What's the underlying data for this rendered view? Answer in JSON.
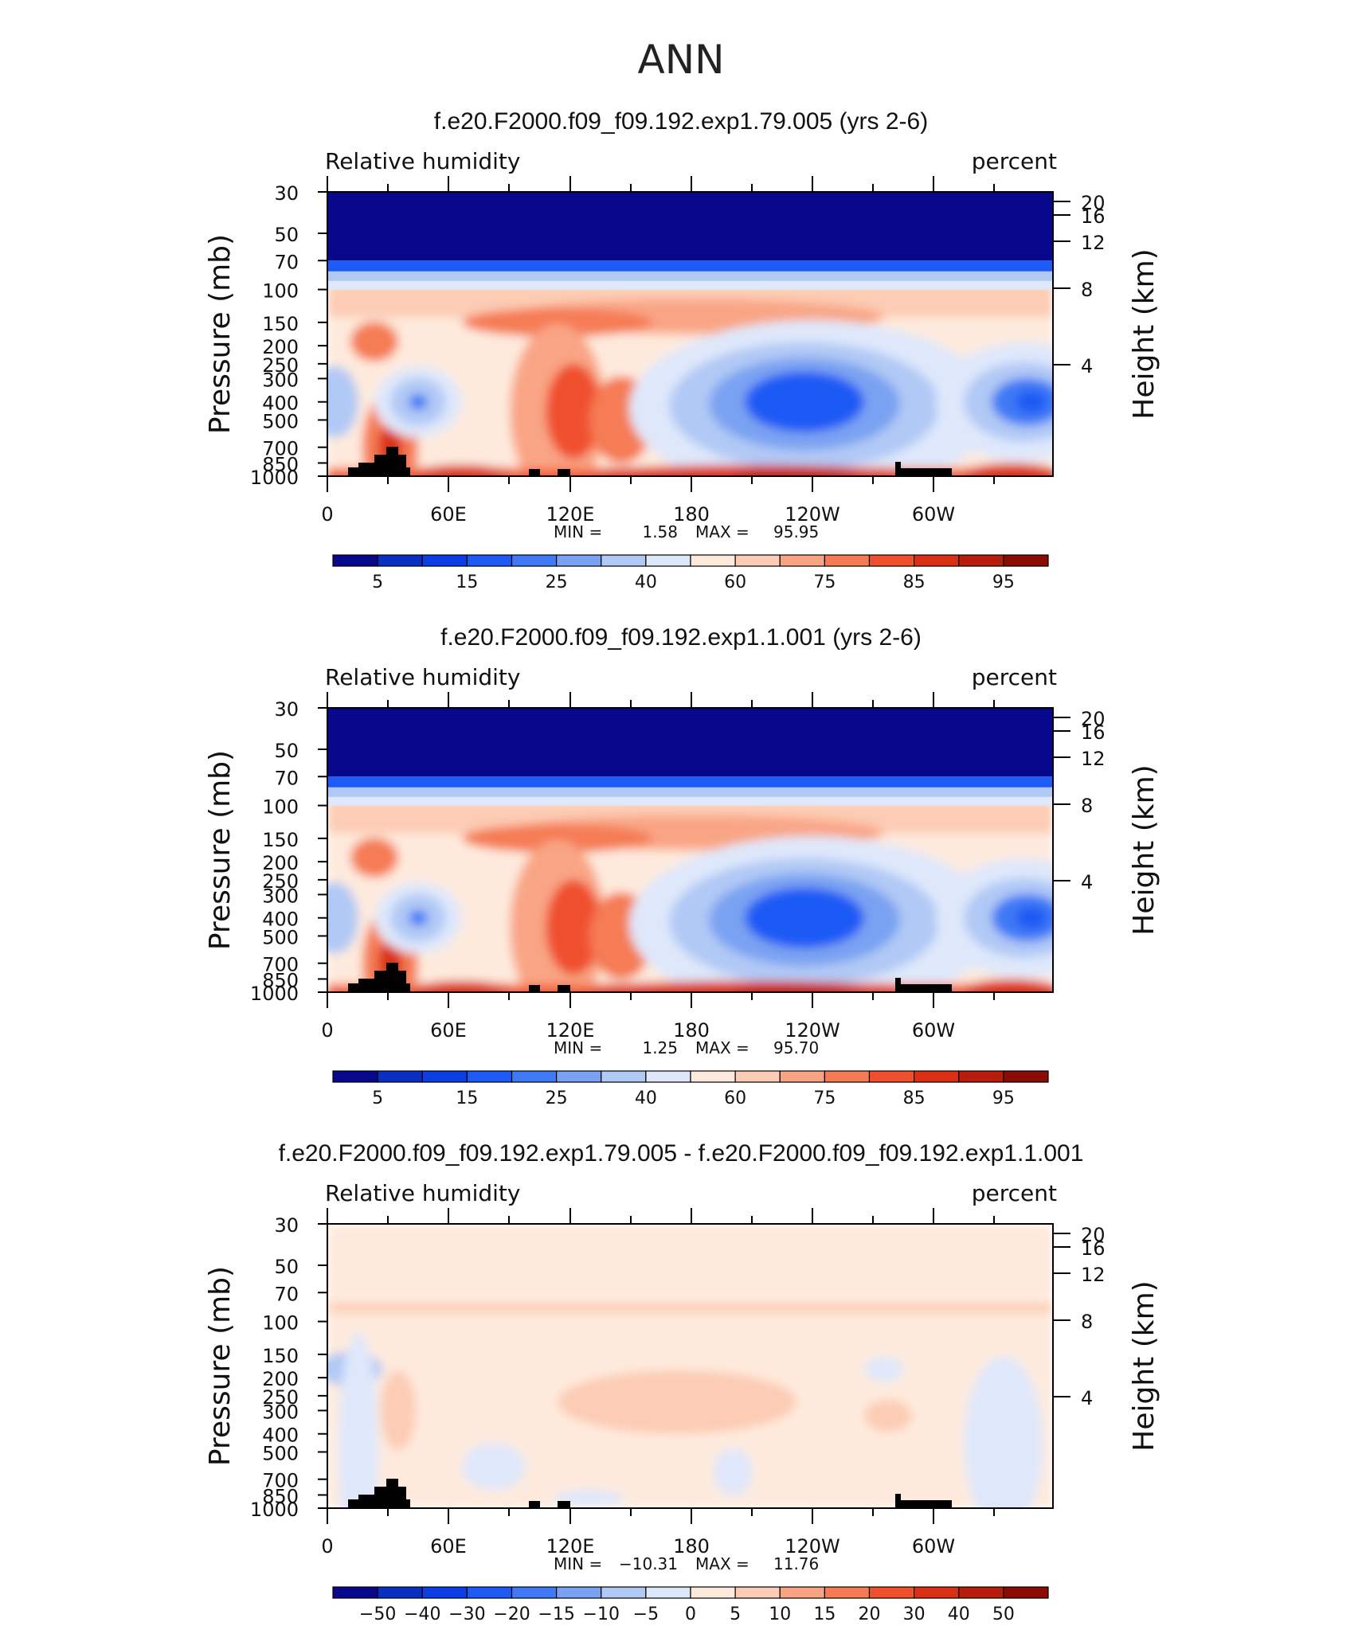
{
  "figure_title": "ANN",
  "chart_data": [
    {
      "type": "heatmap",
      "title": "f.e20.F2000.f09_f09.192.exp1.79.005 (yrs 2-6)",
      "variable": "Relative humidity",
      "units": "percent",
      "ylabel_left": "Pressure (mb)",
      "ylabel_right": "Height (km)",
      "pressure_ticks": [
        "30",
        "50",
        "70",
        "100",
        "150",
        "200",
        "250",
        "300",
        "400",
        "500",
        "700",
        "850",
        "1000"
      ],
      "height_ticks": [
        "20",
        "16",
        "12",
        "8",
        "4"
      ],
      "x_ticks": [
        "0",
        "60E",
        "120E",
        "180",
        "120W",
        "60W"
      ],
      "min_label": "MIN =",
      "min": "1.58",
      "max_label": "MAX =",
      "max": "95.95",
      "colorbar_labels": [
        "5",
        "15",
        "25",
        "40",
        "60",
        "75",
        "85",
        "95"
      ],
      "colorbar_colors": [
        "#08088c",
        "#0a2ec2",
        "#0c3ee6",
        "#1e5af5",
        "#3f79f5",
        "#7aa2f2",
        "#b1c9f5",
        "#dfe8fb",
        "#feeadd",
        "#fcccb4",
        "#f9a585",
        "#f57b55",
        "#f0502e",
        "#dc3014",
        "#b71c0c",
        "#8a0c04"
      ],
      "diverging": false
    },
    {
      "type": "heatmap",
      "title": "f.e20.F2000.f09_f09.192.exp1.1.001 (yrs 2-6)",
      "variable": "Relative humidity",
      "units": "percent",
      "ylabel_left": "Pressure (mb)",
      "ylabel_right": "Height (km)",
      "pressure_ticks": [
        "30",
        "50",
        "70",
        "100",
        "150",
        "200",
        "250",
        "300",
        "400",
        "500",
        "700",
        "850",
        "1000"
      ],
      "height_ticks": [
        "20",
        "16",
        "12",
        "8",
        "4"
      ],
      "x_ticks": [
        "0",
        "60E",
        "120E",
        "180",
        "120W",
        "60W"
      ],
      "min_label": "MIN =",
      "min": "1.25",
      "max_label": "MAX =",
      "max": "95.70",
      "colorbar_labels": [
        "5",
        "15",
        "25",
        "40",
        "60",
        "75",
        "85",
        "95"
      ],
      "colorbar_colors": [
        "#08088c",
        "#0a2ec2",
        "#0c3ee6",
        "#1e5af5",
        "#3f79f5",
        "#7aa2f2",
        "#b1c9f5",
        "#dfe8fb",
        "#feeadd",
        "#fcccb4",
        "#f9a585",
        "#f57b55",
        "#f0502e",
        "#dc3014",
        "#b71c0c",
        "#8a0c04"
      ],
      "diverging": false
    },
    {
      "type": "heatmap",
      "title": "f.e20.F2000.f09_f09.192.exp1.79.005 - f.e20.F2000.f09_f09.192.exp1.1.001",
      "variable": "Relative humidity",
      "units": "percent",
      "ylabel_left": "Pressure (mb)",
      "ylabel_right": "Height (km)",
      "pressure_ticks": [
        "30",
        "50",
        "70",
        "100",
        "150",
        "200",
        "250",
        "300",
        "400",
        "500",
        "700",
        "850",
        "1000"
      ],
      "height_ticks": [
        "20",
        "16",
        "12",
        "8",
        "4"
      ],
      "x_ticks": [
        "0",
        "60E",
        "120E",
        "180",
        "120W",
        "60W"
      ],
      "min_label": "MIN =",
      "min": "−10.31",
      "max_label": "MAX =",
      "max": "11.76",
      "colorbar_labels": [
        "−50",
        "−40",
        "−30",
        "−20",
        "−15",
        "−10",
        "−5",
        "0",
        "5",
        "10",
        "15",
        "20",
        "30",
        "40",
        "50"
      ],
      "colorbar_colors": [
        "#08088c",
        "#0a2ec2",
        "#0c3ee6",
        "#1e5af5",
        "#3f79f5",
        "#7aa2f2",
        "#b1c9f5",
        "#dfe8fb",
        "#feeadd",
        "#fcccb4",
        "#f9a585",
        "#f57b55",
        "#f0502e",
        "#dc3014",
        "#b71c0c",
        "#8a0c04"
      ],
      "diverging": true
    }
  ]
}
